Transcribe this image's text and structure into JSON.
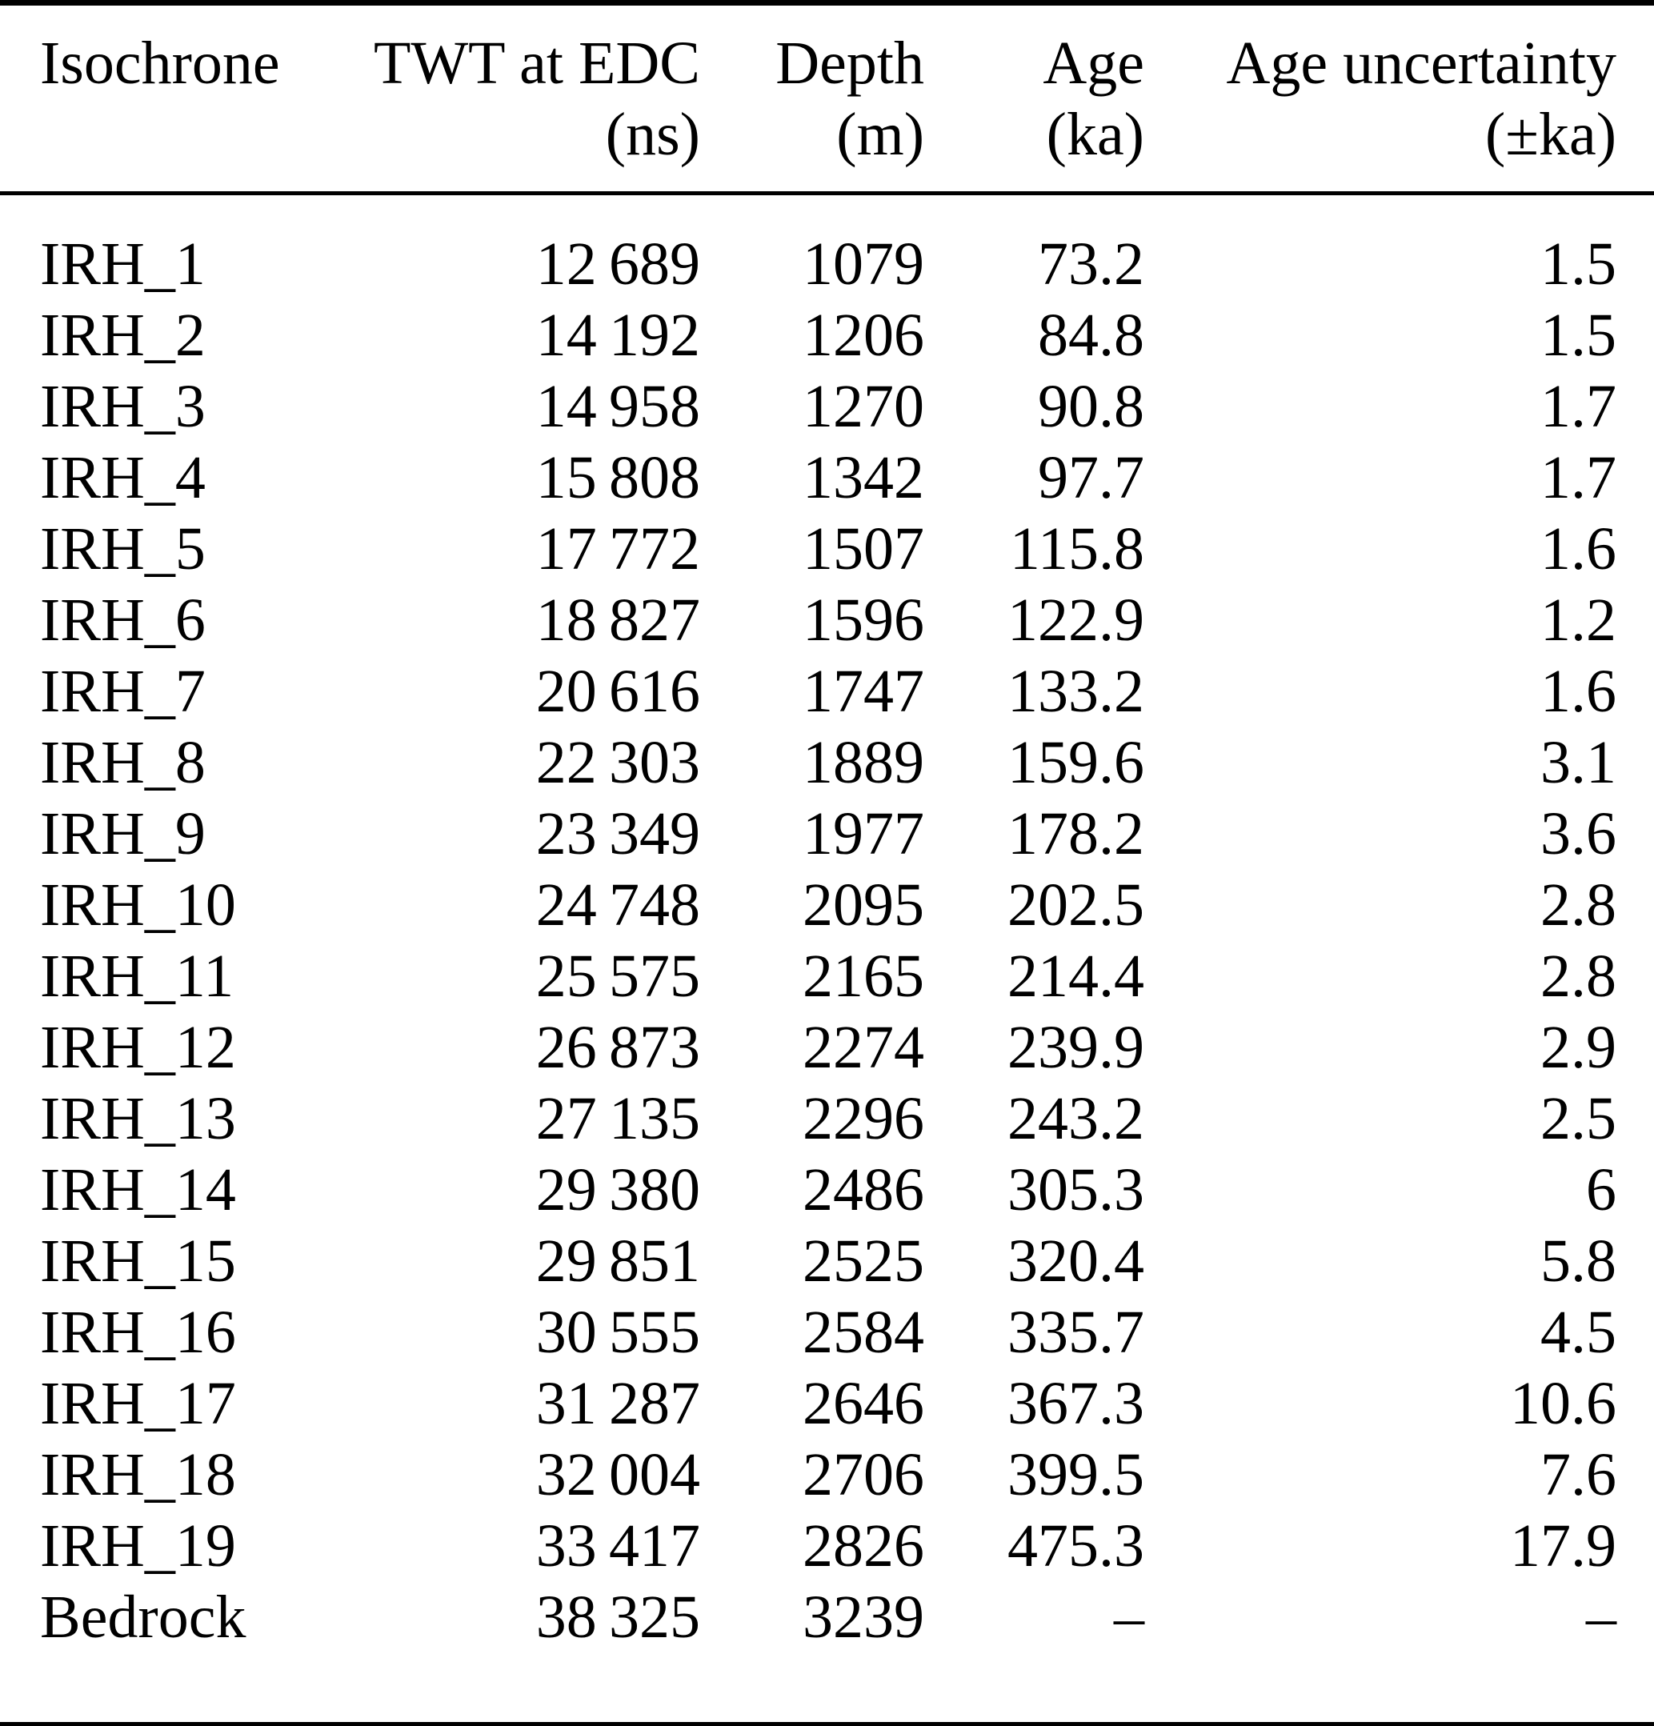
{
  "colors": {
    "background": "#ffffff",
    "text": "#000000",
    "rule": "#000000"
  },
  "table": {
    "columns": [
      {
        "id": "isochrone",
        "label": "Isochrone",
        "unit": ""
      },
      {
        "id": "twt-at-edc-ns",
        "label": "TWT at EDC",
        "unit": "(ns)"
      },
      {
        "id": "depth-m",
        "label": "Depth",
        "unit": "(m)"
      },
      {
        "id": "age-ka",
        "label": "Age",
        "unit": "(ka)"
      },
      {
        "id": "age-uncertainty-ka",
        "label": "Age uncertainty",
        "unit": "(±ka)"
      }
    ],
    "rows": [
      [
        "IRH_1",
        "12 689",
        "1079",
        "73.2",
        "1.5"
      ],
      [
        "IRH_2",
        "14 192",
        "1206",
        "84.8",
        "1.5"
      ],
      [
        "IRH_3",
        "14 958",
        "1270",
        "90.8",
        "1.7"
      ],
      [
        "IRH_4",
        "15 808",
        "1342",
        "97.7",
        "1.7"
      ],
      [
        "IRH_5",
        "17 772",
        "1507",
        "115.8",
        "1.6"
      ],
      [
        "IRH_6",
        "18 827",
        "1596",
        "122.9",
        "1.2"
      ],
      [
        "IRH_7",
        "20 616",
        "1747",
        "133.2",
        "1.6"
      ],
      [
        "IRH_8",
        "22 303",
        "1889",
        "159.6",
        "3.1"
      ],
      [
        "IRH_9",
        "23 349",
        "1977",
        "178.2",
        "3.6"
      ],
      [
        "IRH_10",
        "24 748",
        "2095",
        "202.5",
        "2.8"
      ],
      [
        "IRH_11",
        "25 575",
        "2165",
        "214.4",
        "2.8"
      ],
      [
        "IRH_12",
        "26 873",
        "2274",
        "239.9",
        "2.9"
      ],
      [
        "IRH_13",
        "27 135",
        "2296",
        "243.2",
        "2.5"
      ],
      [
        "IRH_14",
        "29 380",
        "2486",
        "305.3",
        "6"
      ],
      [
        "IRH_15",
        "29 851",
        "2525",
        "320.4",
        "5.8"
      ],
      [
        "IRH_16",
        "30 555",
        "2584",
        "335.7",
        "4.5"
      ],
      [
        "IRH_17",
        "31 287",
        "2646",
        "367.3",
        "10.6"
      ],
      [
        "IRH_18",
        "32 004",
        "2706",
        "399.5",
        "7.6"
      ],
      [
        "IRH_19",
        "33 417",
        "2826",
        "475.3",
        "17.9"
      ],
      [
        "Bedrock",
        "38 325",
        "3239",
        "–",
        "–"
      ]
    ]
  }
}
